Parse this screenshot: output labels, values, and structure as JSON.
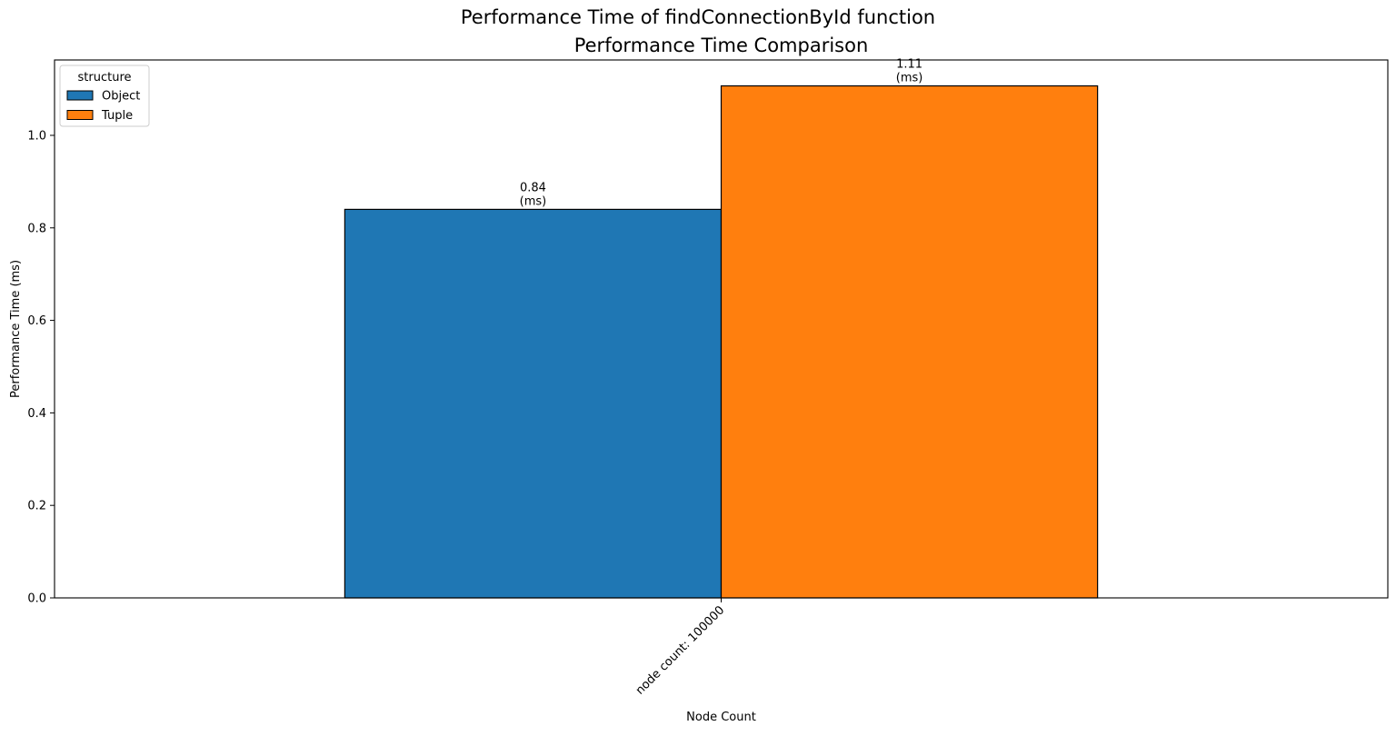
{
  "chart_data": {
    "type": "bar",
    "suptitle": "Performance Time of findConnectionById function",
    "title": "Performance Time Comparison",
    "xlabel": "Node Count",
    "ylabel": "Performance Time (ms)",
    "categories": [
      "node count: 100000"
    ],
    "series": [
      {
        "name": "Object",
        "values": [
          0.84
        ],
        "color": "#1f77b4"
      },
      {
        "name": "Tuple",
        "values": [
          1.107
        ],
        "color": "#ff7f0e"
      }
    ],
    "bar_labels": [
      [
        "0.84",
        "(ms)"
      ],
      [
        "1.11",
        "(ms)"
      ]
    ],
    "ylim": [
      0,
      1.163
    ],
    "yticks": [
      0.0,
      0.2,
      0.4,
      0.6,
      0.8,
      1.0
    ],
    "ytick_labels": [
      "0.0",
      "0.2",
      "0.4",
      "0.6",
      "0.8",
      "1.0"
    ],
    "legend": {
      "title": "structure",
      "placement": "top-left"
    },
    "grid": false
  }
}
